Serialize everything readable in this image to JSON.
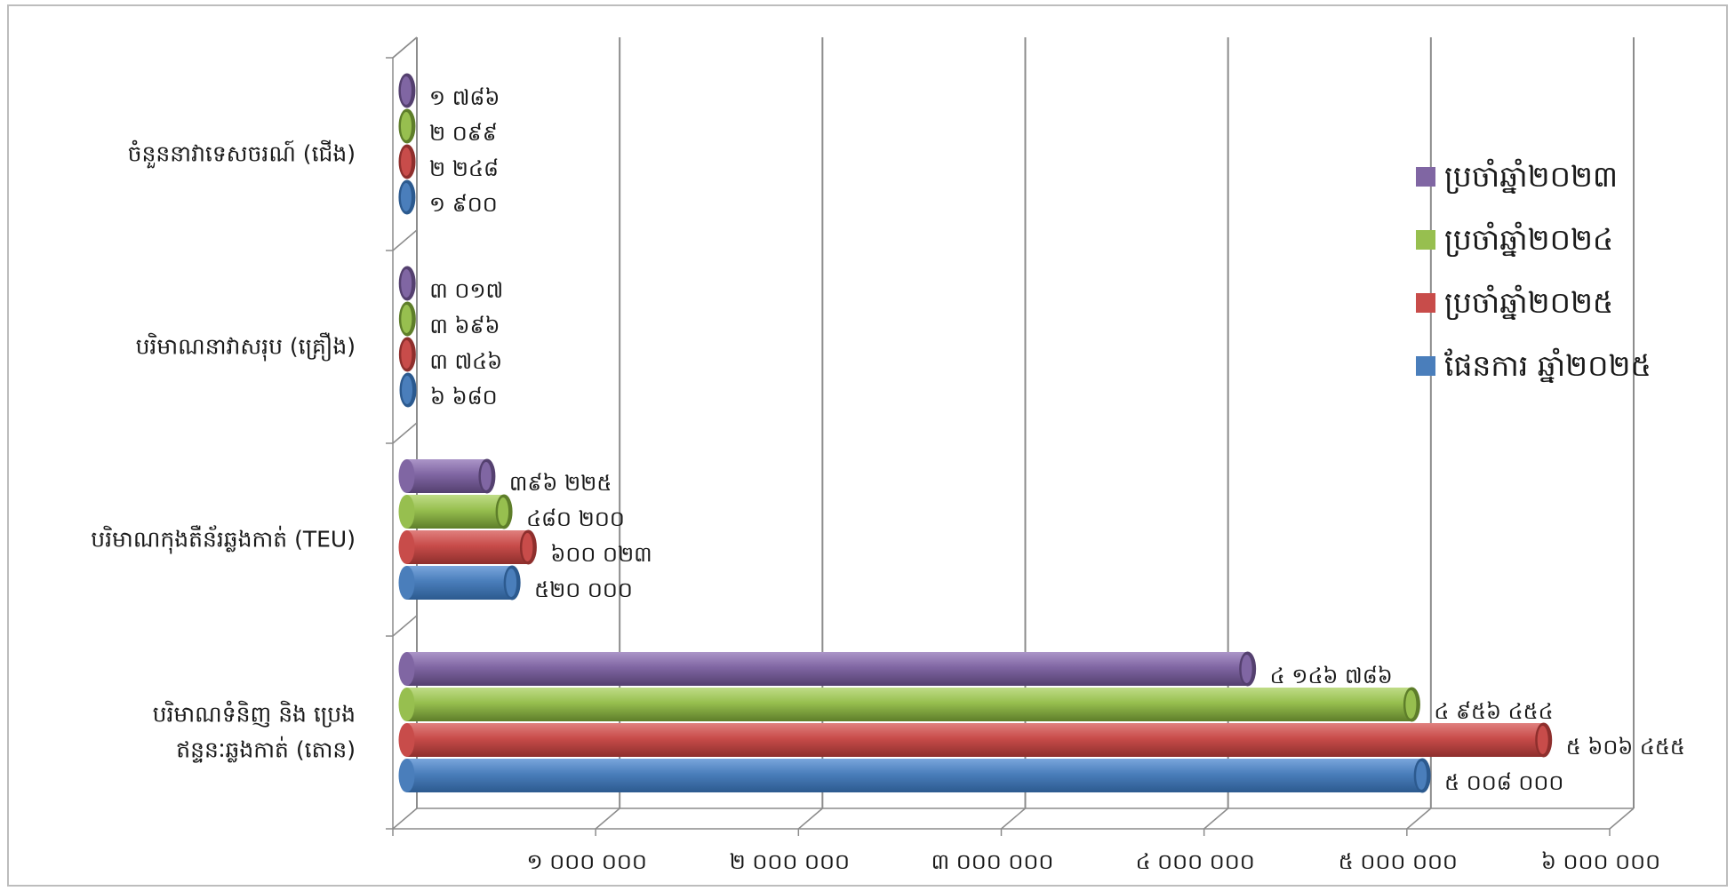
{
  "chart_data": {
    "type": "bar",
    "orientation": "horizontal",
    "style": "3d-cylinder",
    "categories": [
      [
        "បរិមាណទំនិញ និង ប្រេង",
        "ឥន្ទនៈឆ្លងកាត់ (តោន)"
      ],
      [
        "បរិមាណកុងតឺន័រឆ្លងកាត់ (TEU)"
      ],
      [
        "បរិមាណនាវាសរុប (គ្រឿង)"
      ],
      [
        "ចំនួននាវាទេសចរណ៍ (ជើង)"
      ]
    ],
    "series": [
      {
        "name": "ផែនការ ឆ្នាំ២០២៥",
        "color": "#4a7ebb",
        "dark": "#2c5a8f",
        "light": "#7aa6dc",
        "values": [
          5008000,
          520000,
          6680,
          1900
        ],
        "labels": [
          "៥ ០០៨ ០០០",
          "៥២០ ០០០",
          "៦ ៦៨០",
          "១ ៩០០"
        ]
      },
      {
        "name": "ប្រចាំឆ្នាំ២០២៥",
        "color": "#c84c4a",
        "dark": "#8e2f2d",
        "light": "#e0807e",
        "values": [
          5606455,
          600023,
          3746,
          2248
        ],
        "labels": [
          "៥ ៦០៦ ៤៥៥",
          "៦០០ ០២៣",
          "៣ ៧៤៦",
          "២ ២៤៨"
        ]
      },
      {
        "name": "ប្រចាំឆ្នាំ២០២៤",
        "color": "#97bf4f",
        "dark": "#5e7e2a",
        "light": "#bfdc87",
        "values": [
          4956454,
          480200,
          3696,
          2099
        ],
        "labels": [
          "៤ ៩៥៦ ៤៥៤",
          "៤៨០ ២០០",
          "៣ ៦៩៦",
          "២ ០៩៩"
        ]
      },
      {
        "name": "ប្រចាំឆ្នាំ២០២៣",
        "color": "#8066a3",
        "dark": "#54406f",
        "light": "#ab95c8",
        "values": [
          4146786,
          396225,
          3017,
          1786
        ],
        "labels": [
          "៤ ១៤៦ ៧៨៦",
          "៣៩៦ ២២៥",
          "៣ ០១៧",
          "១ ៧៨៦"
        ]
      }
    ],
    "legend_order": [
      3,
      2,
      1,
      0
    ],
    "xlim": [
      0,
      6000000
    ],
    "x_ticks": [
      1000000,
      2000000,
      3000000,
      4000000,
      5000000,
      6000000
    ],
    "x_tick_labels": [
      "១ ០០០ ០០០",
      "២ ០០០ ០០០",
      "៣ ០០០ ០០០",
      "៤ ០០០ ០០០",
      "៥ ០០០ ០០០",
      "៦ ០០០ ០០០"
    ],
    "grid": true,
    "legend_position": "right",
    "title": "",
    "xlabel": "",
    "ylabel": ""
  }
}
